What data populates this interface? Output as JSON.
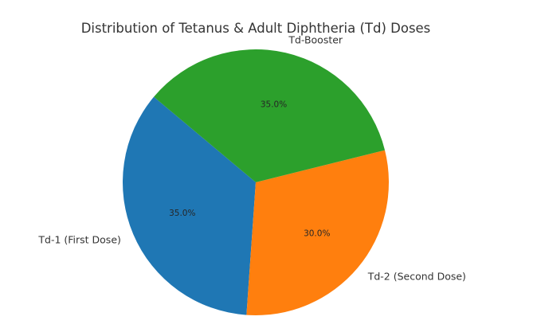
{
  "chart_data": {
    "type": "pie",
    "title": "Distribution of Tetanus & Adult Diphtheria (Td) Doses",
    "categories": [
      "Td-1 (First Dose)",
      "Td-2 (Second Dose)",
      "Td-Booster"
    ],
    "values": [
      35.0,
      30.0,
      35.0
    ],
    "value_labels": [
      "35.0%",
      "30.0%",
      "35.0%"
    ],
    "colors": [
      "#1f77b4",
      "#ff7f0e",
      "#2ca02c"
    ],
    "start_angle_deg": 140,
    "direction": "counterclockwise"
  }
}
